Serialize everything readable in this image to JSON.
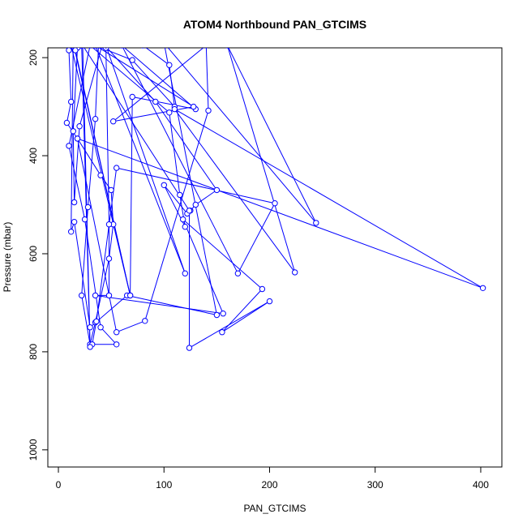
{
  "chart_data": {
    "type": "line",
    "title": "ATOM4 Northbound PAN_GTCIMS",
    "xlabel": "PAN_GTCIMS",
    "ylabel": "Pressure (mbar)",
    "xlim": [
      -10,
      420
    ],
    "ylim": [
      1035,
      180
    ],
    "y_reversed": true,
    "xticks": [
      0,
      100,
      200,
      300,
      400
    ],
    "yticks": [
      200,
      400,
      600,
      800,
      1000
    ],
    "grid": false,
    "series_color": "#0000ff",
    "marker": "open-circle",
    "series": [
      {
        "points": [
          [
            22,
            170
          ],
          [
            45,
            180
          ],
          [
            80,
            175
          ],
          [
            105,
            215
          ],
          [
            110,
            300
          ],
          [
            70,
            205
          ],
          [
            35,
            175
          ],
          [
            10,
            185
          ],
          [
            12,
            290
          ],
          [
            8,
            333
          ],
          [
            18,
            365
          ],
          [
            40,
            440
          ],
          [
            50,
            470
          ],
          [
            52,
            540
          ],
          [
            48,
            610
          ],
          [
            35,
            740
          ],
          [
            30,
            785
          ],
          [
            22,
            685
          ],
          [
            28,
            505
          ],
          [
            35,
            325
          ],
          [
            38,
            175
          ],
          [
            18,
            180
          ],
          [
            14,
            350
          ],
          [
            15,
            495
          ],
          [
            20,
            340
          ],
          [
            42,
            170
          ],
          [
            92,
            290
          ],
          [
            150,
            470
          ],
          [
            130,
            500
          ],
          [
            125,
            512
          ],
          [
            122,
            518
          ],
          [
            100,
            460
          ],
          [
            120,
            545
          ],
          [
            115,
            480
          ],
          [
            105,
            312
          ],
          [
            30,
            175
          ],
          [
            10,
            380
          ],
          [
            25,
            530
          ],
          [
            40,
            750
          ],
          [
            55,
            785
          ],
          [
            32,
            785
          ],
          [
            36,
            738
          ],
          [
            55,
            425
          ],
          [
            205,
            497
          ],
          [
            170,
            640
          ],
          [
            60,
            175
          ],
          [
            130,
            305
          ],
          [
            70,
            280
          ],
          [
            68,
            685
          ],
          [
            14,
            170
          ],
          [
            12,
            555
          ],
          [
            15,
            535
          ],
          [
            30,
            750
          ],
          [
            65,
            685
          ],
          [
            150,
            725
          ],
          [
            100,
            170
          ],
          [
            244,
            537
          ],
          [
            160,
            175
          ],
          [
            224,
            638
          ],
          [
            110,
            305
          ],
          [
            402,
            670
          ],
          [
            18,
            365
          ],
          [
            55,
            760
          ],
          [
            82,
            737
          ],
          [
            142,
            308
          ],
          [
            140,
            175
          ],
          [
            52,
            330
          ],
          [
            128,
            300
          ],
          [
            35,
            175
          ],
          [
            120,
            640
          ],
          [
            45,
            175
          ],
          [
            48,
            540
          ],
          [
            48,
            685
          ],
          [
            35,
            685
          ],
          [
            156,
            722
          ],
          [
            118,
            530
          ],
          [
            193,
            672
          ],
          [
            155,
            760
          ],
          [
            200,
            697
          ],
          [
            124,
            792
          ],
          [
            124,
            512
          ],
          [
            23,
            175
          ],
          [
            30,
            790
          ],
          [
            22,
            175
          ],
          [
            16,
            185
          ],
          [
            68,
            685
          ],
          [
            12,
            175
          ],
          [
            40,
            175
          ]
        ]
      }
    ]
  }
}
